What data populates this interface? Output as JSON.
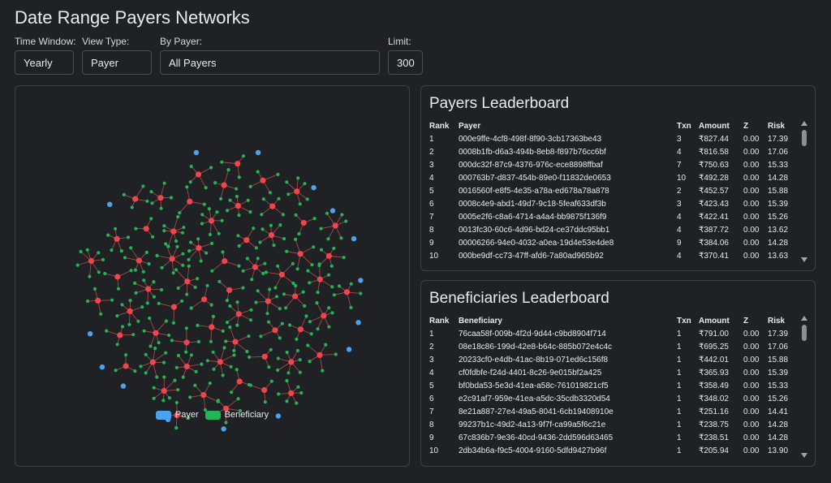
{
  "title": "Date Range Payers Networks",
  "controls": {
    "time_window": {
      "label": "Time Window:",
      "value": "Yearly"
    },
    "view_type": {
      "label": "View Type:",
      "value": "Payer"
    },
    "by_payer": {
      "label": "By Payer:",
      "value": "All Payers"
    },
    "limit": {
      "label": "Limit:",
      "value": "300"
    }
  },
  "colors": {
    "payer": "#4aa3ef",
    "beneficiary": "#22b455",
    "hub": "#f0454a",
    "edge": "#e85a5a"
  },
  "legend": {
    "payer": "Payer",
    "beneficiary": "Beneficiary"
  },
  "payers_leaderboard": {
    "title": "Payers Leaderboard",
    "headers": {
      "rank": "Rank",
      "id": "Payer",
      "txn": "Txn",
      "amount": "Amount",
      "z": "Z",
      "risk": "Risk"
    },
    "rows": [
      {
        "rank": "1",
        "id": "000e9ffe-4cf8-498f-8f90-3cb17363be43",
        "txn": "3",
        "amount": "₹827.44",
        "z": "0.00",
        "risk": "17.39"
      },
      {
        "rank": "2",
        "id": "0008b1fb-d6a3-494b-8eb8-f897b76cc6bf",
        "txn": "4",
        "amount": "₹816.58",
        "z": "0.00",
        "risk": "17.06"
      },
      {
        "rank": "3",
        "id": "000dc32f-87c9-4376-976c-ece8898ffbaf",
        "txn": "7",
        "amount": "₹750.63",
        "z": "0.00",
        "risk": "15.33"
      },
      {
        "rank": "4",
        "id": "000763b7-d837-454b-89e0-f11832de0653",
        "txn": "10",
        "amount": "₹492.28",
        "z": "0.00",
        "risk": "14.28"
      },
      {
        "rank": "5",
        "id": "0016560f-e8f5-4e35-a78a-ed678a78a878",
        "txn": "2",
        "amount": "₹452.57",
        "z": "0.00",
        "risk": "15.88"
      },
      {
        "rank": "6",
        "id": "0008c4e9-abd1-49d7-9c18-5feaf633df3b",
        "txn": "3",
        "amount": "₹423.43",
        "z": "0.00",
        "risk": "15.39"
      },
      {
        "rank": "7",
        "id": "0005e2f6-c8a6-4714-a4a4-bb9875f136f9",
        "txn": "4",
        "amount": "₹422.41",
        "z": "0.00",
        "risk": "15.26"
      },
      {
        "rank": "8",
        "id": "0013fc30-60c6-4d96-bd24-ce37ddc95bb1",
        "txn": "4",
        "amount": "₹387.72",
        "z": "0.00",
        "risk": "13.62"
      },
      {
        "rank": "9",
        "id": "00006266-94e0-4032-a0ea-19d4e53e4de8",
        "txn": "9",
        "amount": "₹384.06",
        "z": "0.00",
        "risk": "14.28"
      },
      {
        "rank": "10",
        "id": "000be9df-cc73-47ff-afd6-7a80ad965b92",
        "txn": "4",
        "amount": "₹370.41",
        "z": "0.00",
        "risk": "13.63"
      }
    ]
  },
  "beneficiaries_leaderboard": {
    "title": "Beneficiaries Leaderboard",
    "headers": {
      "rank": "Rank",
      "id": "Beneficiary",
      "txn": "Txn",
      "amount": "Amount",
      "z": "Z",
      "risk": "Risk"
    },
    "rows": [
      {
        "rank": "1",
        "id": "76caa58f-009b-4f2d-9d44-c9bd8904f714",
        "txn": "1",
        "amount": "₹791.00",
        "z": "0.00",
        "risk": "17.39"
      },
      {
        "rank": "2",
        "id": "08e18c86-199d-42e8-b64c-885b072e4c4c",
        "txn": "1",
        "amount": "₹695.25",
        "z": "0.00",
        "risk": "17.06"
      },
      {
        "rank": "3",
        "id": "20233cf0-e4db-41ac-8b19-071ed6c156f8",
        "txn": "1",
        "amount": "₹442.01",
        "z": "0.00",
        "risk": "15.88"
      },
      {
        "rank": "4",
        "id": "cf0fdbfe-f24d-4401-8c26-9e015bf2a425",
        "txn": "1",
        "amount": "₹365.93",
        "z": "0.00",
        "risk": "15.39"
      },
      {
        "rank": "5",
        "id": "bf0bda53-5e3d-41ea-a58c-761019821cf5",
        "txn": "1",
        "amount": "₹358.49",
        "z": "0.00",
        "risk": "15.33"
      },
      {
        "rank": "6",
        "id": "e2c91af7-959e-41ea-a5dc-35cdb3320d54",
        "txn": "1",
        "amount": "₹348.02",
        "z": "0.00",
        "risk": "15.26"
      },
      {
        "rank": "7",
        "id": "8e21a887-27e4-49a5-8041-6cb19408910e",
        "txn": "1",
        "amount": "₹251.16",
        "z": "0.00",
        "risk": "14.41"
      },
      {
        "rank": "8",
        "id": "99237b1c-49d2-4a13-9f7f-ca99a5f6c21e",
        "txn": "1",
        "amount": "₹238.75",
        "z": "0.00",
        "risk": "14.28"
      },
      {
        "rank": "9",
        "id": "67c836b7-9e36-40cd-9436-2dd596d63465",
        "txn": "1",
        "amount": "₹238.51",
        "z": "0.00",
        "risk": "14.28"
      },
      {
        "rank": "10",
        "id": "2db34b6a-f9c5-4004-9160-5dfd9427b96f",
        "txn": "1",
        "amount": "₹205.94",
        "z": "0.00",
        "risk": "13.90"
      }
    ]
  }
}
